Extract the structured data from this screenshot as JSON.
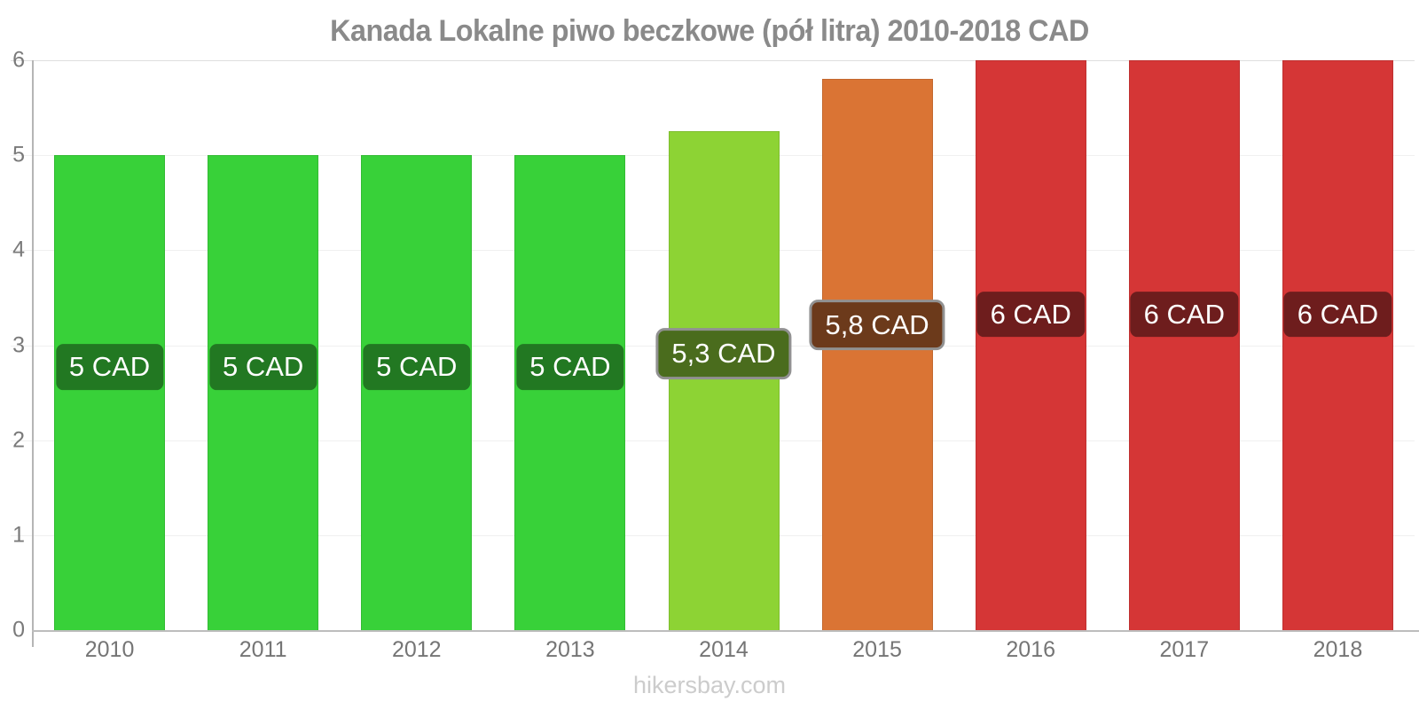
{
  "title": "Kanada Lokalne piwo beczkowe (pół litra) 2010-2018 CAD",
  "footer": "hikersbay.com",
  "chart_data": {
    "type": "bar",
    "title": "Kanada Lokalne piwo beczkowe (pół litra) 2010-2018 CAD",
    "xlabel": "",
    "ylabel": "",
    "categories": [
      "2010",
      "2011",
      "2012",
      "2013",
      "2014",
      "2015",
      "2016",
      "2017",
      "2018"
    ],
    "values": [
      5,
      5,
      5,
      5,
      5.25,
      5.8,
      6,
      6,
      6
    ],
    "bar_labels": [
      "5 CAD",
      "5 CAD",
      "5 CAD",
      "5 CAD",
      "5,3 CAD",
      "5,8 CAD",
      "6 CAD",
      "6 CAD",
      "6 CAD"
    ],
    "bar_colors": [
      "#38d139",
      "#38d139",
      "#38d139",
      "#38d139",
      "#8dd334",
      "#da7434",
      "#d53636",
      "#d53636",
      "#d53636"
    ],
    "label_bg_colors": [
      "#227822",
      "#227822",
      "#227822",
      "#227822",
      "#4a6c1d",
      "#6c3a1b",
      "#6e1d1d",
      "#6e1d1d",
      "#6e1d1d"
    ],
    "label_bordered": [
      false,
      false,
      false,
      false,
      true,
      true,
      false,
      false,
      false
    ],
    "ylim": [
      0,
      6
    ],
    "yticks": [
      0,
      1,
      2,
      3,
      4,
      5,
      6
    ],
    "grid": true,
    "legend": false,
    "currency": "CAD"
  }
}
